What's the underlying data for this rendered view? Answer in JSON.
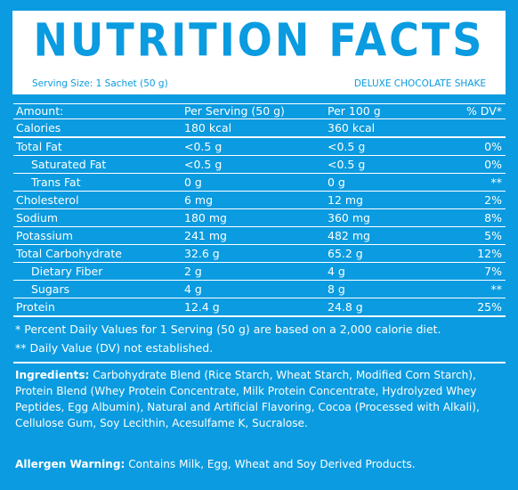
{
  "header": {
    "title": "NUTRITION FACTS",
    "serving_size": "Serving Size: 1 Sachet (50 g)",
    "flavor": "DELUXE CHOCOLATE SHAKE"
  },
  "columns": [
    "Amount:",
    "Per Serving (50 g)",
    "Per 100 g",
    "% DV*"
  ],
  "rows": [
    {
      "name": "Calories",
      "per_serving": "180 kcal",
      "per_100g": "360 kcal",
      "dv": "",
      "indent": false,
      "thick": true
    },
    {
      "name": "Total Fat",
      "per_serving": "<0.5 g",
      "per_100g": "<0.5 g",
      "dv": "0%",
      "indent": false,
      "thick": false
    },
    {
      "name": "Saturated Fat",
      "per_serving": "<0.5 g",
      "per_100g": "<0.5 g",
      "dv": "0%",
      "indent": true,
      "thick": false
    },
    {
      "name": "Trans Fat",
      "per_serving": "0 g",
      "per_100g": "0 g",
      "dv": "**",
      "indent": true,
      "thick": false
    },
    {
      "name": "Cholesterol",
      "per_serving": "6 mg",
      "per_100g": "12 mg",
      "dv": "2%",
      "indent": false,
      "thick": false
    },
    {
      "name": "Sodium",
      "per_serving": "180 mg",
      "per_100g": "360 mg",
      "dv": "8%",
      "indent": false,
      "thick": false
    },
    {
      "name": "Potassium",
      "per_serving": "241 mg",
      "per_100g": "482 mg",
      "dv": "5%",
      "indent": false,
      "thick": false
    },
    {
      "name": "Total Carbohydrate",
      "per_serving": "32.6 g",
      "per_100g": "65.2 g",
      "dv": "12%",
      "indent": false,
      "thick": false
    },
    {
      "name": "Dietary Fiber",
      "per_serving": "2 g",
      "per_100g": "4 g",
      "dv": "7%",
      "indent": true,
      "thick": false
    },
    {
      "name": "Sugars",
      "per_serving": "4 g",
      "per_100g": "8 g",
      "dv": "**",
      "indent": true,
      "thick": false
    },
    {
      "name": "Protein",
      "per_serving": "12.4 g",
      "per_100g": "24.8 g",
      "dv": "25%",
      "indent": false,
      "thick": true
    }
  ],
  "notes": {
    "dv_note": "* Percent Daily Values for 1 Serving (50 g) are based on a 2,000 calorie diet.",
    "dv_not_established": "** Daily Value (DV) not established."
  },
  "ingredients": {
    "label": "Ingredients:",
    "text": " Carbohydrate Blend (Rice Starch, Wheat Starch, Modified Corn Starch), Protein Blend (Whey Protein Concentrate, Milk Protein Concentrate, Hydrolyzed Whey Peptides, Egg Albumin), Natural and Artificial Flavoring, Cocoa (Processed with Alkali), Cellulose Gum, Soy Lecithin, Acesulfame K, Sucralose."
  },
  "allergen": {
    "label": "Allergen Warning:",
    "text": " Contains Milk, Egg, Wheat and Soy Derived Products."
  },
  "colors": {
    "background": "#0a9be0",
    "panel": "#ffffff",
    "text": "#ffffff"
  }
}
